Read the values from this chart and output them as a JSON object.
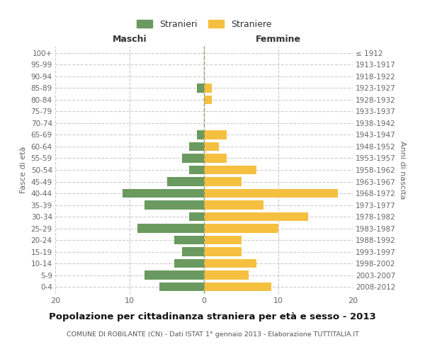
{
  "age_groups": [
    "0-4",
    "5-9",
    "10-14",
    "15-19",
    "20-24",
    "25-29",
    "30-34",
    "35-39",
    "40-44",
    "45-49",
    "50-54",
    "55-59",
    "60-64",
    "65-69",
    "70-74",
    "75-79",
    "80-84",
    "85-89",
    "90-94",
    "95-99",
    "100+"
  ],
  "birth_years": [
    "2008-2012",
    "2003-2007",
    "1998-2002",
    "1993-1997",
    "1988-1992",
    "1983-1987",
    "1978-1982",
    "1973-1977",
    "1968-1972",
    "1963-1967",
    "1958-1962",
    "1953-1957",
    "1948-1952",
    "1943-1947",
    "1938-1942",
    "1933-1937",
    "1928-1932",
    "1923-1927",
    "1918-1922",
    "1913-1917",
    "≤ 1912"
  ],
  "maschi": [
    6,
    8,
    4,
    3,
    4,
    9,
    2,
    8,
    11,
    5,
    2,
    3,
    2,
    1,
    0,
    0,
    0,
    1,
    0,
    0,
    0
  ],
  "femmine": [
    9,
    6,
    7,
    5,
    5,
    10,
    14,
    8,
    18,
    5,
    7,
    3,
    2,
    3,
    0,
    0,
    1,
    1,
    0,
    0,
    0
  ],
  "male_color": "#6a9a5f",
  "female_color": "#f5c040",
  "background_color": "#ffffff",
  "grid_color": "#cccccc",
  "title": "Popolazione per cittadinanza straniera per età e sesso - 2013",
  "subtitle": "COMUNE DI ROBILANTE (CN) - Dati ISTAT 1° gennaio 2013 - Elaborazione TUTTITALIA.IT",
  "xlabel_left": "Maschi",
  "xlabel_right": "Femmine",
  "ylabel_left": "Fasce di età",
  "ylabel_right": "Anni di nascita",
  "legend_male": "Stranieri",
  "legend_female": "Straniere",
  "xlim": 20,
  "bar_height": 0.75
}
